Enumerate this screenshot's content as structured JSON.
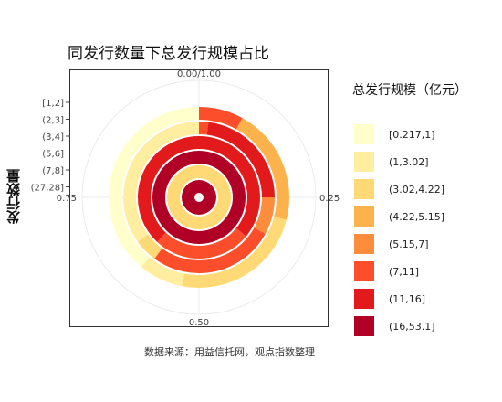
{
  "chart_data": {
    "type": "polar-bar",
    "title": "同发行数量下总发行规模占比",
    "ylabel": "发行数量",
    "theta_ticks": [
      "0.00/1.00",
      "0.25",
      "0.50",
      "0.75"
    ],
    "legend_title": "总发行规模（亿元）",
    "legend_position": "right",
    "categories": [
      "[1,2]",
      "(2,3]",
      "(3,4]",
      "(5,6]",
      "(7,8]",
      "(27,28]"
    ],
    "scale_classes": [
      "[0.217,1]",
      "(1,3.02]",
      "(3.02,4.22]",
      "(4.22,5.15]",
      "(5.15,7]",
      "(7,11]",
      "(11,16]",
      "(16,53.1]"
    ],
    "colors": [
      "#FFFFCC",
      "#FFEDA0",
      "#FED976",
      "#FEB24C",
      "#FD8D3C",
      "#FC4E2A",
      "#E31A1C",
      "#B10026"
    ],
    "rings": [
      {
        "category": "[1,2]",
        "segments": [
          {
            "class": "(7,11]",
            "share": 0.08
          },
          {
            "class": "(4.22,5.15]",
            "share": 0.21
          },
          {
            "class": "(3.02,4.22]",
            "share": 0.24
          },
          {
            "class": "(1,3.02]",
            "share": 0.08
          },
          {
            "class": "[0.217,1]",
            "share": 0.39
          }
        ]
      },
      {
        "category": "(2,3]",
        "segments": [
          {
            "class": "(7,11]",
            "share": 0.02
          },
          {
            "class": "(11,16]",
            "share": 0.23
          },
          {
            "class": "(5.15,7]",
            "share": 0.08
          },
          {
            "class": "(7,11]",
            "share": 0.27
          },
          {
            "class": "(3.02,4.22]",
            "share": 0.05
          },
          {
            "class": "(1,3.02]",
            "share": 0.35
          }
        ]
      },
      {
        "category": "(3,4]",
        "segments": [
          {
            "class": "(11,16]",
            "share": 0.36
          },
          {
            "class": "(7,11]",
            "share": 0.26
          },
          {
            "class": "(11,16]",
            "share": 0.38
          }
        ]
      },
      {
        "category": "(5,6]",
        "segments": [
          {
            "class": "(16,53.1]",
            "share": 1.0
          }
        ]
      },
      {
        "category": "(7,8]",
        "segments": [
          {
            "class": "(3.02,4.22]",
            "share": 1.0
          }
        ]
      },
      {
        "category": "(27,28]",
        "segments": [
          {
            "class": "(16,53.1]",
            "share": 1.0
          }
        ]
      }
    ]
  },
  "caption": "数据来源：用益信托网，观点指数整理"
}
